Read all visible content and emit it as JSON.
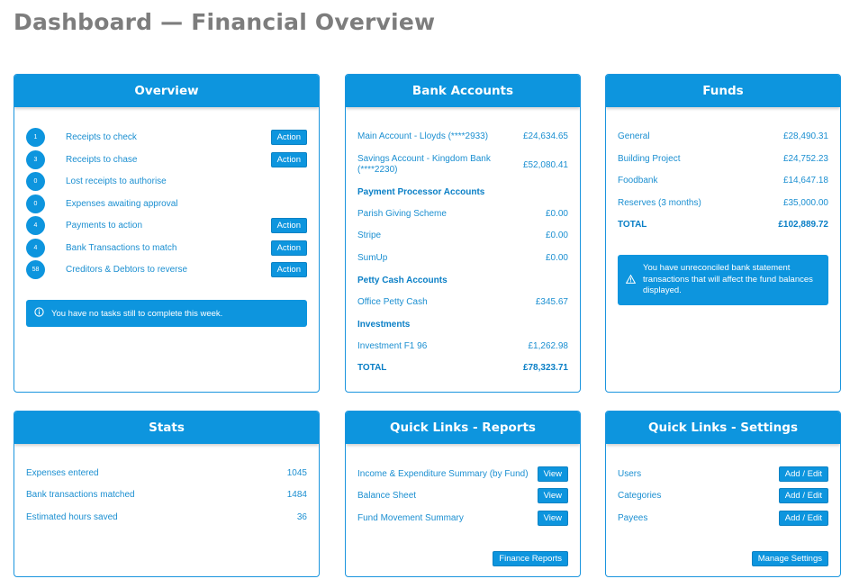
{
  "page_title": "Dashboard — Financial Overview",
  "overview": {
    "title": "Overview",
    "items": [
      {
        "count": "1",
        "label": "Receipts to check",
        "action": "Action"
      },
      {
        "count": "3",
        "label": "Receipts to chase",
        "action": "Action"
      },
      {
        "count": "0",
        "label": "Lost receipts to authorise",
        "action": ""
      },
      {
        "count": "0",
        "label": "Expenses awaiting approval",
        "action": ""
      },
      {
        "count": "4",
        "label": "Payments to action",
        "action": "Action"
      },
      {
        "count": "4",
        "label": "Bank Transactions to match",
        "action": "Action"
      },
      {
        "count": "58",
        "label": "Creditors & Debtors to reverse",
        "action": "Action"
      }
    ],
    "notice": "You have no tasks still to complete this week.",
    "notice_icon": "info-circle-icon"
  },
  "bank": {
    "title": "Bank Accounts",
    "main_label": "Main Account - Lloyds (****2933)",
    "main_value": "£24,634.65",
    "savings_label": "Savings Account - Kingdom Bank (****2230)",
    "savings_value": "£52,080.41",
    "processor_head": "Payment Processor Accounts",
    "parish_label": "Parish Giving Scheme",
    "parish_value": "£0.00",
    "stripe_label": "Stripe",
    "stripe_value": "£0.00",
    "sumup_label": "SumUp",
    "sumup_value": "£0.00",
    "petty_head": "Petty Cash Accounts",
    "office_label": "Office Petty Cash",
    "office_value": "£345.67",
    "invest_head": "Investments",
    "invest_label": "Investment F1 96",
    "invest_value": "£1,262.98",
    "total_label": "TOTAL",
    "total_value": "£78,323.71"
  },
  "funds": {
    "title": "Funds",
    "general_label": "General",
    "general_value": "£28,490.31",
    "building_label": "Building Project",
    "building_value": "£24,752.23",
    "food_label": "Foodbank",
    "food_value": "£14,647.18",
    "reserves_label": "Reserves (3 months)",
    "reserves_value": "£35,000.00",
    "total_label": "TOTAL",
    "total_value": "£102,889.72",
    "warning": "You have unreconciled bank statement transactions that will affect the fund balances displayed.",
    "warning_icon": "warning-triangle-icon"
  },
  "stats": {
    "title": "Stats",
    "expenses_label": "Expenses entered",
    "expenses_value": "1045",
    "bank_label": "Bank transactions matched",
    "bank_value": "1484",
    "hours_label": "Estimated hours saved",
    "hours_value": "36"
  },
  "reports": {
    "title": "Quick Links - Reports",
    "income_label": "Income & Expenditure Summary (by Fund)",
    "balance_label": "Balance Sheet",
    "movement_label": "Fund Movement Summary",
    "view_label": "View",
    "finance_button": "Finance Reports"
  },
  "settings": {
    "title": "Quick Links - Settings",
    "users_label": "Users",
    "categories_label": "Categories",
    "payees_label": "Payees",
    "edit_label": "Add / Edit",
    "manage_button": "Manage Settings"
  }
}
